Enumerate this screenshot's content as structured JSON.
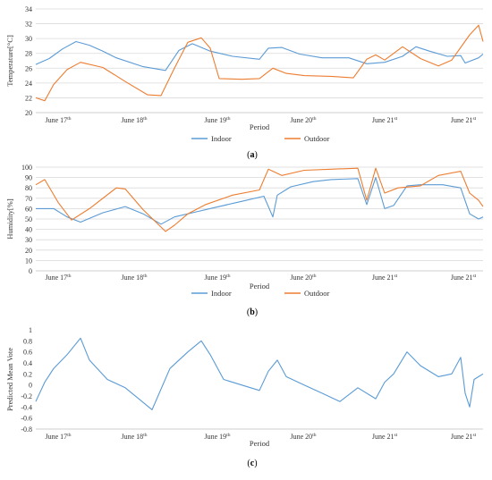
{
  "colors": {
    "indoor": "#5b9bd5",
    "outdoor": "#ed7d31",
    "grid": "#d9d9d9",
    "axis": "#bfbfbf"
  },
  "chart_data": [
    {
      "type": "line",
      "caption": "(a)",
      "caption_letter": "a",
      "ylabel": "Temperature[°C]",
      "xlabel": "Period",
      "ylim": [
        20,
        34
      ],
      "yticks": [
        20,
        22,
        24,
        26,
        28,
        30,
        32,
        34
      ],
      "grid": true,
      "legend": "bottom",
      "x_tick_labels": [
        {
          "day": "June 17",
          "sup": "th"
        },
        {
          "day": "June 18",
          "sup": "th"
        },
        {
          "day": "June 19",
          "sup": "th"
        },
        {
          "day": "June 20",
          "sup": "th"
        },
        {
          "day": "June 21",
          "sup": "st"
        },
        {
          "day": "June 21",
          "sup": "st"
        }
      ],
      "x_unit": "days from June 17 00:00",
      "series": [
        {
          "name": "Indoor",
          "color_key": "indoor",
          "x": [
            0,
            0.15,
            0.3,
            0.45,
            0.6,
            0.75,
            0.9,
            1.2,
            1.45,
            1.6,
            1.75,
            1.95,
            2.2,
            2.5,
            2.6,
            2.75,
            2.95,
            3.2,
            3.5,
            3.7,
            3.9,
            4.1,
            4.25,
            4.4,
            4.6,
            4.75,
            4.8,
            4.95,
            5.0
          ],
          "values": [
            26.5,
            27.3,
            28.6,
            29.6,
            29.1,
            28.3,
            27.4,
            26.2,
            25.7,
            28.4,
            29.3,
            28.3,
            27.6,
            27.2,
            28.7,
            28.8,
            27.9,
            27.4,
            27.4,
            26.6,
            26.8,
            27.6,
            28.9,
            28.3,
            27.6,
            27.7,
            26.7,
            27.4,
            27.9
          ]
        },
        {
          "name": "Outdoor",
          "color_key": "outdoor",
          "x": [
            0,
            0.1,
            0.2,
            0.35,
            0.5,
            0.75,
            1.0,
            1.25,
            1.4,
            1.55,
            1.7,
            1.85,
            1.95,
            2.05,
            2.3,
            2.5,
            2.65,
            2.8,
            3.0,
            3.3,
            3.55,
            3.7,
            3.8,
            3.9,
            4.1,
            4.3,
            4.5,
            4.65,
            4.85,
            4.95,
            5.0
          ],
          "values": [
            22.0,
            21.6,
            23.8,
            25.8,
            26.8,
            26.1,
            24.2,
            22.4,
            22.3,
            26.0,
            29.5,
            30.1,
            28.7,
            24.6,
            24.5,
            24.6,
            26.0,
            25.3,
            25.0,
            24.9,
            24.7,
            27.2,
            27.8,
            27.1,
            28.9,
            27.3,
            26.3,
            27.1,
            30.5,
            31.8,
            29.6
          ]
        }
      ]
    },
    {
      "type": "line",
      "caption": "(b)",
      "caption_letter": "b",
      "ylabel": "Humidity[%]",
      "xlabel": "Period",
      "ylim": [
        0,
        100
      ],
      "yticks": [
        0,
        10,
        20,
        30,
        40,
        50,
        60,
        70,
        80,
        90,
        100
      ],
      "grid": true,
      "legend": "bottom",
      "x_tick_labels": [
        {
          "day": "June 17",
          "sup": "th"
        },
        {
          "day": "June 18",
          "sup": "th"
        },
        {
          "day": "June 19",
          "sup": "th"
        },
        {
          "day": "June 20",
          "sup": "th"
        },
        {
          "day": "June 21",
          "sup": "st"
        },
        {
          "day": "June 21",
          "sup": "st"
        }
      ],
      "x_unit": "days from June 17 00:00",
      "series": [
        {
          "name": "Indoor",
          "color_key": "indoor",
          "x": [
            0,
            0.2,
            0.35,
            0.5,
            0.75,
            1.0,
            1.2,
            1.4,
            1.55,
            1.8,
            2.0,
            2.3,
            2.55,
            2.65,
            2.7,
            2.85,
            3.1,
            3.3,
            3.6,
            3.7,
            3.8,
            3.9,
            4.0,
            4.15,
            4.3,
            4.55,
            4.75,
            4.85,
            4.95,
            5.0
          ],
          "values": [
            60,
            60,
            52,
            47,
            56,
            62,
            55,
            45,
            52,
            57,
            61,
            67,
            72,
            52,
            73,
            81,
            86,
            88,
            89,
            64,
            90,
            60,
            63,
            82,
            83,
            83,
            80,
            55,
            50,
            52
          ]
        },
        {
          "name": "Outdoor",
          "color_key": "outdoor",
          "x": [
            0,
            0.1,
            0.25,
            0.4,
            0.6,
            0.9,
            1.0,
            1.2,
            1.45,
            1.55,
            1.7,
            1.9,
            2.2,
            2.5,
            2.6,
            2.75,
            3.0,
            3.3,
            3.6,
            3.7,
            3.8,
            3.9,
            4.05,
            4.3,
            4.5,
            4.75,
            4.85,
            4.95,
            5.0
          ],
          "values": [
            83,
            88,
            66,
            49,
            60,
            80,
            79,
            59,
            38,
            44,
            55,
            64,
            73,
            78,
            98,
            92,
            97,
            98,
            99,
            68,
            99,
            75,
            80,
            82,
            92,
            96,
            75,
            68,
            62
          ]
        }
      ]
    },
    {
      "type": "line",
      "caption": "(c)",
      "caption_letter": "c",
      "ylabel": "Predicted Mean Vote",
      "xlabel": "Period",
      "ylim": [
        -0.8,
        1.0
      ],
      "yticks": [
        -0.8,
        -0.6,
        -0.4,
        -0.2,
        0,
        0.2,
        0.4,
        0.6,
        0.8,
        1
      ],
      "grid": false,
      "legend": "none",
      "x_tick_labels": [
        {
          "day": "June 17",
          "sup": "th"
        },
        {
          "day": "June 18",
          "sup": "th"
        },
        {
          "day": "June 19",
          "sup": "th"
        },
        {
          "day": "June 20",
          "sup": "th"
        },
        {
          "day": "June 21",
          "sup": "st"
        },
        {
          "day": "June 21",
          "sup": "st"
        }
      ],
      "x_unit": "days from June 17 00:00",
      "series": [
        {
          "name": "",
          "color_key": "indoor",
          "x": [
            0,
            0.1,
            0.2,
            0.35,
            0.5,
            0.6,
            0.8,
            1.0,
            1.15,
            1.3,
            1.5,
            1.7,
            1.85,
            1.95,
            2.1,
            2.3,
            2.5,
            2.6,
            2.7,
            2.8,
            3.0,
            3.2,
            3.4,
            3.6,
            3.8,
            3.9,
            4.0,
            4.15,
            4.3,
            4.5,
            4.65,
            4.75,
            4.8,
            4.85,
            4.9,
            4.95,
            5.0
          ],
          "values": [
            -0.3,
            0.05,
            0.3,
            0.55,
            0.85,
            0.45,
            0.1,
            -0.05,
            -0.25,
            -0.45,
            0.3,
            0.6,
            0.8,
            0.55,
            0.1,
            0.0,
            -0.1,
            0.25,
            0.45,
            0.15,
            0.0,
            -0.15,
            -0.3,
            -0.05,
            -0.25,
            0.05,
            0.2,
            0.6,
            0.35,
            0.15,
            0.2,
            0.5,
            -0.15,
            -0.4,
            0.1,
            0.15,
            0.2
          ]
        }
      ]
    }
  ]
}
